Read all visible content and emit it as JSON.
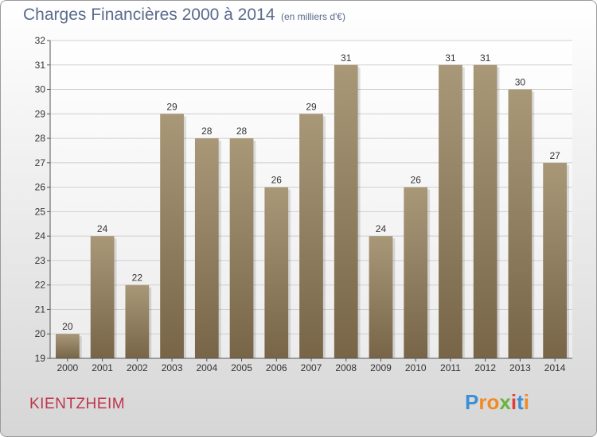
{
  "title": "Charges Financières 2000 à 2014",
  "subtitle": "(en milliers d'€)",
  "commune": "KIENTZHEIM",
  "logo": {
    "text": "Proxiti",
    "letters": [
      "P",
      "r",
      "o",
      "x",
      "i",
      "t",
      "i"
    ],
    "colors": [
      "#3b8fd4",
      "#f08a24",
      "#f08a24",
      "#6ab43e",
      "#e03c3c",
      "#3b8fd4",
      "#f08a24"
    ]
  },
  "colors": {
    "bar_top": "#a89878",
    "bar_bottom": "#786548",
    "label": "#333333",
    "grid": "#cfcfcf"
  },
  "chart_data": {
    "type": "bar",
    "title": "Charges Financières 2000 à 2014",
    "subtitle": "(en milliers d'€)",
    "xlabel": "",
    "ylabel": "",
    "categories": [
      "2000",
      "2001",
      "2002",
      "2003",
      "2004",
      "2005",
      "2006",
      "2007",
      "2008",
      "2009",
      "2010",
      "2011",
      "2012",
      "2013",
      "2014"
    ],
    "values": [
      20,
      24,
      22,
      29,
      28,
      28,
      26,
      29,
      31,
      24,
      26,
      31,
      31,
      30,
      27
    ],
    "data_labels": [
      "20",
      "24",
      "22",
      "29",
      "28",
      "28",
      "26",
      "29",
      "31",
      "24",
      "26",
      "31",
      "31",
      "30",
      "27"
    ],
    "ylim": [
      19,
      32
    ],
    "yticks": [
      "19",
      "20",
      "21",
      "22",
      "23",
      "24",
      "25",
      "26",
      "27",
      "28",
      "29",
      "30",
      "31",
      "32"
    ],
    "grid": true,
    "legend": "none"
  }
}
